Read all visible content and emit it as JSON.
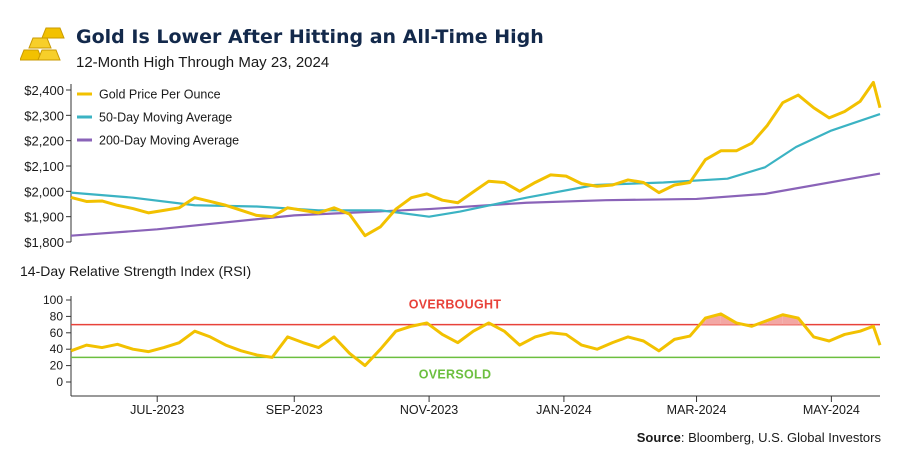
{
  "header": {
    "title": "Gold Is Lower After Hitting an All-Time High",
    "subtitle": "12-Month High Through May 23, 2024",
    "logo_icon": "gold-bars-icon"
  },
  "source": {
    "label": "Source",
    "text": ": Bloomberg, U.S. Global Investors"
  },
  "colors": {
    "gold": "#f2c100",
    "ma50": "#3bb3c3",
    "ma200": "#8a63b8",
    "overbought": "#e8423a",
    "oversold": "#6cbf3f",
    "shade": "#f3a7a4"
  },
  "chart_data": [
    {
      "type": "line",
      "title": "",
      "ylabel": "",
      "ylim": [
        1800,
        2430
      ],
      "y_ticks": [
        "$1,800",
        "$1,900",
        "$2,000",
        "$2,100",
        "$2,200",
        "$2,300",
        "$2,400"
      ],
      "legend_position": "top-left",
      "x_range": [
        "2023-05-23",
        "2024-05-23"
      ],
      "series": [
        {
          "name": "Gold Price Per Ounce",
          "color": "#f2c100",
          "points": [
            [
              "2023-05-23",
              1976
            ],
            [
              "2023-05-30",
              1960
            ],
            [
              "2023-06-06",
              1962
            ],
            [
              "2023-06-13",
              1945
            ],
            [
              "2023-06-20",
              1932
            ],
            [
              "2023-06-27",
              1915
            ],
            [
              "2023-07-04",
              1925
            ],
            [
              "2023-07-11",
              1935
            ],
            [
              "2023-07-18",
              1975
            ],
            [
              "2023-07-25",
              1960
            ],
            [
              "2023-08-01",
              1945
            ],
            [
              "2023-08-08",
              1925
            ],
            [
              "2023-08-15",
              1905
            ],
            [
              "2023-08-22",
              1900
            ],
            [
              "2023-08-29",
              1935
            ],
            [
              "2023-09-05",
              1925
            ],
            [
              "2023-09-12",
              1915
            ],
            [
              "2023-09-19",
              1935
            ],
            [
              "2023-09-26",
              1910
            ],
            [
              "2023-10-03",
              1825
            ],
            [
              "2023-10-10",
              1860
            ],
            [
              "2023-10-17",
              1930
            ],
            [
              "2023-10-24",
              1975
            ],
            [
              "2023-10-31",
              1990
            ],
            [
              "2023-11-07",
              1965
            ],
            [
              "2023-11-14",
              1955
            ],
            [
              "2023-11-21",
              1998
            ],
            [
              "2023-11-28",
              2040
            ],
            [
              "2023-12-05",
              2035
            ],
            [
              "2023-12-12",
              2000
            ],
            [
              "2023-12-19",
              2035
            ],
            [
              "2023-12-26",
              2065
            ],
            [
              "2024-01-02",
              2060
            ],
            [
              "2024-01-09",
              2030
            ],
            [
              "2024-01-16",
              2020
            ],
            [
              "2024-01-23",
              2025
            ],
            [
              "2024-01-30",
              2045
            ],
            [
              "2024-02-06",
              2035
            ],
            [
              "2024-02-13",
              1995
            ],
            [
              "2024-02-20",
              2025
            ],
            [
              "2024-02-27",
              2035
            ],
            [
              "2024-03-05",
              2125
            ],
            [
              "2024-03-12",
              2160
            ],
            [
              "2024-03-19",
              2160
            ],
            [
              "2024-03-26",
              2190
            ],
            [
              "2024-04-02",
              2260
            ],
            [
              "2024-04-09",
              2350
            ],
            [
              "2024-04-16",
              2380
            ],
            [
              "2024-04-23",
              2330
            ],
            [
              "2024-04-30",
              2290
            ],
            [
              "2024-05-07",
              2315
            ],
            [
              "2024-05-14",
              2355
            ],
            [
              "2024-05-20",
              2430
            ],
            [
              "2024-05-23",
              2330
            ]
          ]
        },
        {
          "name": "50-Day Moving Average",
          "color": "#3bb3c3",
          "points": [
            [
              "2023-05-23",
              1995
            ],
            [
              "2023-06-20",
              1975
            ],
            [
              "2023-07-18",
              1945
            ],
            [
              "2023-08-15",
              1940
            ],
            [
              "2023-09-12",
              1925
            ],
            [
              "2023-10-10",
              1925
            ],
            [
              "2023-11-01",
              1900
            ],
            [
              "2023-11-15",
              1920
            ],
            [
              "2023-12-15",
              1975
            ],
            [
              "2024-01-15",
              2025
            ],
            [
              "2024-02-15",
              2035
            ],
            [
              "2024-03-15",
              2050
            ],
            [
              "2024-04-01",
              2095
            ],
            [
              "2024-04-15",
              2175
            ],
            [
              "2024-05-01",
              2240
            ],
            [
              "2024-05-23",
              2305
            ]
          ]
        },
        {
          "name": "200-Day Moving Average",
          "color": "#8a63b8",
          "points": [
            [
              "2023-05-23",
              1825
            ],
            [
              "2023-07-01",
              1850
            ],
            [
              "2023-09-01",
              1905
            ],
            [
              "2023-11-01",
              1930
            ],
            [
              "2023-12-15",
              1955
            ],
            [
              "2024-01-20",
              1965
            ],
            [
              "2024-03-01",
              1970
            ],
            [
              "2024-04-01",
              1990
            ],
            [
              "2024-05-23",
              2070
            ]
          ]
        }
      ]
    },
    {
      "type": "line",
      "title": "14-Day Relative Strength Index (RSI)",
      "ylim": [
        0,
        100
      ],
      "y_ticks": [
        "0",
        "20",
        "40",
        "60",
        "80",
        "100"
      ],
      "x_tick_labels": [
        "JUL-2023",
        "SEP-2023",
        "NOV-2023",
        "JAN-2024",
        "MAR-2024",
        "MAY-2024"
      ],
      "x_tick_dates": [
        "2023-07-01",
        "2023-09-01",
        "2023-11-01",
        "2024-01-01",
        "2024-03-01",
        "2024-05-01"
      ],
      "thresholds": [
        {
          "label": "OVERBOUGHT",
          "value": 70,
          "color": "#e8423a"
        },
        {
          "label": "OVERSOLD",
          "value": 30,
          "color": "#6cbf3f"
        }
      ],
      "series": [
        {
          "name": "RSI",
          "color": "#f2c100",
          "points": [
            [
              "2023-05-23",
              38
            ],
            [
              "2023-05-30",
              45
            ],
            [
              "2023-06-06",
              42
            ],
            [
              "2023-06-13",
              46
            ],
            [
              "2023-06-20",
              40
            ],
            [
              "2023-06-27",
              37
            ],
            [
              "2023-07-04",
              42
            ],
            [
              "2023-07-11",
              48
            ],
            [
              "2023-07-18",
              62
            ],
            [
              "2023-07-25",
              55
            ],
            [
              "2023-08-01",
              45
            ],
            [
              "2023-08-08",
              38
            ],
            [
              "2023-08-15",
              33
            ],
            [
              "2023-08-22",
              30
            ],
            [
              "2023-08-29",
              55
            ],
            [
              "2023-09-05",
              48
            ],
            [
              "2023-09-12",
              42
            ],
            [
              "2023-09-19",
              55
            ],
            [
              "2023-09-26",
              35
            ],
            [
              "2023-10-03",
              20
            ],
            [
              "2023-10-10",
              40
            ],
            [
              "2023-10-17",
              62
            ],
            [
              "2023-10-24",
              68
            ],
            [
              "2023-10-31",
              72
            ],
            [
              "2023-11-07",
              58
            ],
            [
              "2023-11-14",
              48
            ],
            [
              "2023-11-21",
              62
            ],
            [
              "2023-11-28",
              72
            ],
            [
              "2023-12-05",
              62
            ],
            [
              "2023-12-12",
              45
            ],
            [
              "2023-12-19",
              55
            ],
            [
              "2023-12-26",
              60
            ],
            [
              "2024-01-02",
              58
            ],
            [
              "2024-01-09",
              45
            ],
            [
              "2024-01-16",
              40
            ],
            [
              "2024-01-23",
              48
            ],
            [
              "2024-01-30",
              55
            ],
            [
              "2024-02-06",
              50
            ],
            [
              "2024-02-13",
              38
            ],
            [
              "2024-02-20",
              52
            ],
            [
              "2024-02-27",
              56
            ],
            [
              "2024-03-05",
              78
            ],
            [
              "2024-03-12",
              83
            ],
            [
              "2024-03-19",
              72
            ],
            [
              "2024-03-26",
              68
            ],
            [
              "2024-04-02",
              75
            ],
            [
              "2024-04-09",
              82
            ],
            [
              "2024-04-16",
              78
            ],
            [
              "2024-04-23",
              55
            ],
            [
              "2024-04-30",
              50
            ],
            [
              "2024-05-07",
              58
            ],
            [
              "2024-05-14",
              62
            ],
            [
              "2024-05-20",
              68
            ],
            [
              "2024-05-23",
              45
            ]
          ]
        }
      ]
    }
  ]
}
